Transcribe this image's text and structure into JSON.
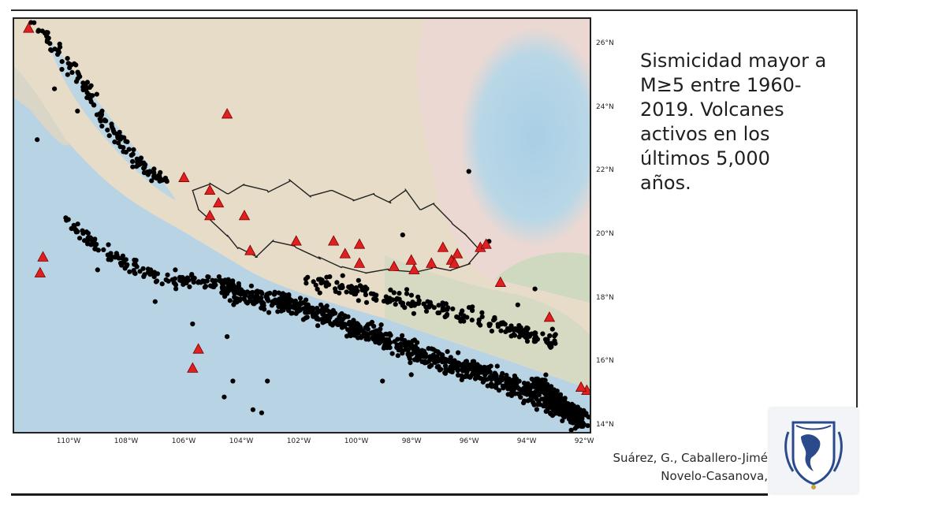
{
  "caption": {
    "lines": [
      "Sismicidad mayor a",
      "M≥5 entre 1960-",
      "2019. Volcanes",
      "activos en los",
      "últimos 5,000",
      "años."
    ]
  },
  "citation": {
    "line1": "Suárez, G., Caballero-Jimé",
    "line2": "Novelo-Casanova,"
  },
  "map": {
    "lon_range": [
      -111.8,
      -91.8
    ],
    "lat_range": [
      13.8,
      26.8
    ],
    "lon_ticks": [
      "110°W",
      "108°W",
      "106°W",
      "104°W",
      "102°W",
      "100°W",
      "98°W",
      "96°W",
      "94°W",
      "92°W"
    ],
    "lat_ticks": [
      "26°N",
      "24°N",
      "22°N",
      "20°N",
      "18°N",
      "16°N",
      "14°N"
    ],
    "colors": {
      "land": "#e6dcc8",
      "land_green": "#cfd9c0",
      "ocean": "#b7d3e4",
      "gulf_deep": "#a9cfe6",
      "gulf_shelf": "#ecd8d2",
      "earthquake": "#000000",
      "volcano": "#e02020",
      "outline": "#222222"
    },
    "volcanoes": [
      [
        -111.3,
        26.5
      ],
      [
        -110.8,
        19.3
      ],
      [
        -110.9,
        18.8
      ],
      [
        -104.4,
        23.8
      ],
      [
        -105.9,
        21.8
      ],
      [
        -105.0,
        21.4
      ],
      [
        -104.7,
        21.0
      ],
      [
        -105.0,
        20.6
      ],
      [
        -103.6,
        19.5
      ],
      [
        -103.8,
        20.6
      ],
      [
        -102.0,
        19.8
      ],
      [
        -100.7,
        19.8
      ],
      [
        -100.3,
        19.4
      ],
      [
        -99.8,
        19.7
      ],
      [
        -99.8,
        19.1
      ],
      [
        -98.6,
        19.0
      ],
      [
        -98.0,
        19.2
      ],
      [
        -97.9,
        18.9
      ],
      [
        -97.3,
        19.1
      ],
      [
        -96.6,
        19.2
      ],
      [
        -96.9,
        19.6
      ],
      [
        -96.4,
        19.4
      ],
      [
        -96.5,
        19.1
      ],
      [
        -95.6,
        19.6
      ],
      [
        -95.4,
        19.7
      ],
      [
        -94.9,
        18.5
      ],
      [
        -93.2,
        17.4
      ],
      [
        -91.9,
        15.1
      ],
      [
        -92.1,
        15.2
      ],
      [
        -105.4,
        16.4
      ],
      [
        -105.6,
        15.8
      ]
    ],
    "outline_path": [
      [
        -105.6,
        21.4
      ],
      [
        -105.0,
        21.6
      ],
      [
        -104.4,
        21.3
      ],
      [
        -103.8,
        21.6
      ],
      [
        -103.0,
        21.4
      ],
      [
        -102.2,
        21.7
      ],
      [
        -101.5,
        21.2
      ],
      [
        -100.8,
        21.4
      ],
      [
        -100.0,
        21.1
      ],
      [
        -99.3,
        21.3
      ],
      [
        -98.7,
        21.0
      ],
      [
        -98.2,
        21.4
      ],
      [
        -97.7,
        20.8
      ],
      [
        -97.2,
        21.0
      ],
      [
        -96.6,
        20.4
      ],
      [
        -96.1,
        20.0
      ],
      [
        -95.6,
        19.5
      ],
      [
        -96.0,
        19.1
      ],
      [
        -96.6,
        18.9
      ],
      [
        -97.3,
        19.0
      ],
      [
        -98.0,
        18.8
      ],
      [
        -98.8,
        18.9
      ],
      [
        -99.6,
        18.8
      ],
      [
        -100.4,
        19.0
      ],
      [
        -101.2,
        19.3
      ],
      [
        -102.0,
        19.6
      ],
      [
        -102.8,
        19.8
      ],
      [
        -103.4,
        19.3
      ],
      [
        -104.0,
        19.6
      ],
      [
        -104.4,
        20.0
      ],
      [
        -104.9,
        20.4
      ],
      [
        -105.4,
        20.8
      ],
      [
        -105.6,
        21.4
      ]
    ],
    "seismic_clusters": [
      {
        "path": [
          [
            -111.0,
            26.6
          ],
          [
            -109.6,
            25.0
          ],
          [
            -108.6,
            23.6
          ],
          [
            -107.6,
            22.4
          ],
          [
            -106.6,
            21.6
          ]
        ],
        "count": 150,
        "spread": 0.35
      },
      {
        "path": [
          [
            -110.0,
            20.4
          ],
          [
            -108.4,
            19.3
          ],
          [
            -106.8,
            18.6
          ],
          [
            -105.2,
            18.5
          ],
          [
            -104.0,
            18.4
          ]
        ],
        "count": 160,
        "spread": 0.35
      },
      {
        "path": [
          [
            -104.5,
            18.2
          ],
          [
            -102.0,
            17.8
          ],
          [
            -99.5,
            16.9
          ],
          [
            -97.0,
            16.0
          ],
          [
            -95.0,
            15.5
          ],
          [
            -93.0,
            14.6
          ],
          [
            -92.0,
            14.2
          ]
        ],
        "count": 900,
        "spread": 0.55
      },
      {
        "path": [
          [
            -93.6,
            15.4
          ],
          [
            -92.3,
            14.3
          ]
        ],
        "count": 250,
        "spread": 0.35
      },
      {
        "path": [
          [
            -101.5,
            18.6
          ],
          [
            -98.0,
            17.9
          ],
          [
            -95.0,
            17.2
          ],
          [
            -93.0,
            16.6
          ]
        ],
        "count": 220,
        "spread": 0.5
      }
    ],
    "seismic_scatter": [
      [
        -111.0,
        23.0
      ],
      [
        -110.4,
        24.6
      ],
      [
        -109.6,
        23.9
      ],
      [
        -104.5,
        14.9
      ],
      [
        -104.2,
        15.4
      ],
      [
        -103.5,
        14.5
      ],
      [
        -103.2,
        14.4
      ],
      [
        -103.0,
        15.4
      ],
      [
        -104.4,
        16.8
      ],
      [
        -98.0,
        15.6
      ],
      [
        -96.0,
        22.0
      ],
      [
        -98.3,
        20.0
      ],
      [
        -106.2,
        18.9
      ],
      [
        -105.6,
        17.2
      ],
      [
        -106.9,
        17.9
      ],
      [
        -108.9,
        18.9
      ],
      [
        -99.0,
        15.4
      ],
      [
        -95.3,
        19.8
      ],
      [
        -94.3,
        17.8
      ],
      [
        -93.7,
        18.3
      ]
    ]
  }
}
